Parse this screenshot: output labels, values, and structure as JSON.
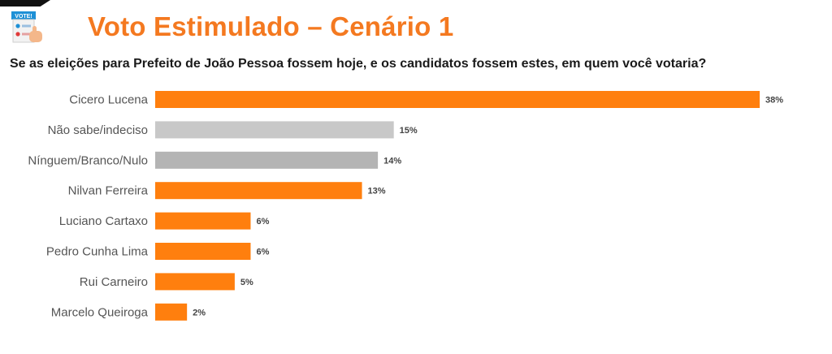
{
  "header": {
    "logo_text": "VOTE!",
    "title": "Voto Estimulado – Cenário 1",
    "question": "Se as eleições para Prefeito de João Pessoa fossem hoje, e os candidatos fossem estes, em quem você votaria?"
  },
  "colors": {
    "accent": "#f47920",
    "bar_candidate": "#ff7f0e",
    "bar_undecided": "#c8c8c8",
    "bar_null": "#b4b4b4"
  },
  "chart_data": {
    "type": "bar",
    "orientation": "horizontal",
    "value_format": "percent",
    "xlim": [
      0,
      38
    ],
    "grid": false,
    "legend": "none",
    "categories": [
      "Cicero Lucena",
      "Não sabe/indeciso",
      "Nínguem/Branco/Nulo",
      "Nilvan Ferreira",
      "Luciano Cartaxo",
      "Pedro Cunha Lima",
      "Rui Carneiro",
      "Marcelo Queiroga"
    ],
    "values": [
      38,
      15,
      14,
      13,
      6,
      6,
      5,
      2
    ],
    "labels": [
      "38%",
      "15%",
      "14%",
      "13%",
      "6%",
      "6%",
      "5%",
      "2%"
    ],
    "bar_colors": [
      "#ff7f0e",
      "#c8c8c8",
      "#b4b4b4",
      "#ff7f0e",
      "#ff7f0e",
      "#ff7f0e",
      "#ff7f0e",
      "#ff7f0e"
    ]
  }
}
